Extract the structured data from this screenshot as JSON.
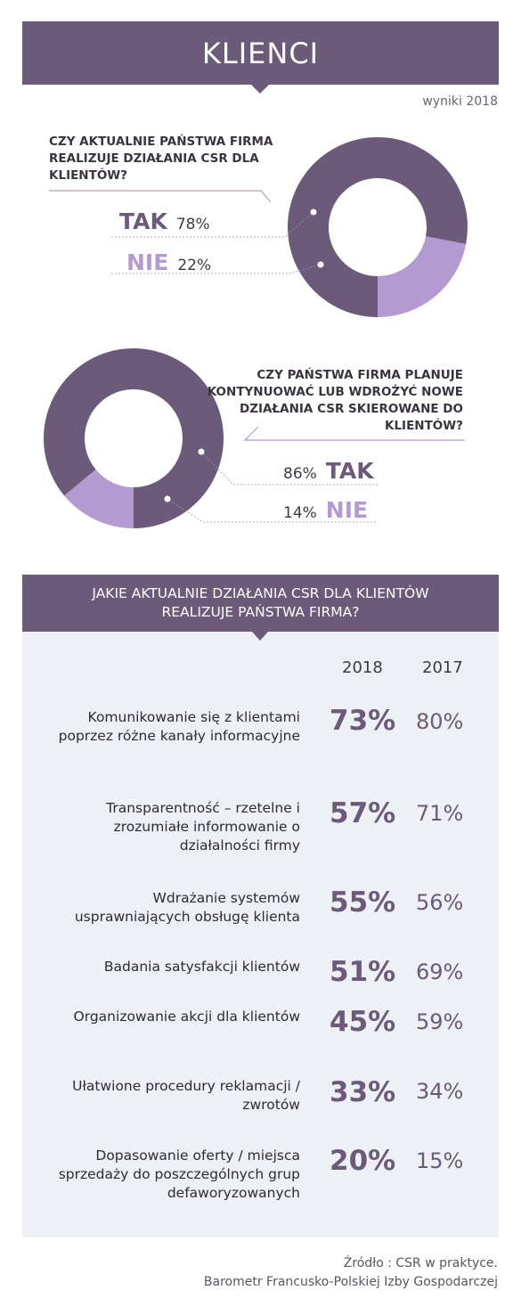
{
  "title": "KLIENCI",
  "year_note": "wyniki 2018",
  "colors": {
    "dark": "#6c5a7a",
    "light": "#b39ad0",
    "panel": "#edf0f4"
  },
  "chart_data": [
    {
      "type": "pie",
      "title": "CZY AKTUALNIE PAŃSTWA FIRMA REALIZUJE DZIAŁANIA CSR DLA KLIENTÓW?",
      "categories": [
        "TAK",
        "NIE"
      ],
      "values": [
        78,
        22
      ],
      "labels": [
        "78%",
        "22%"
      ]
    },
    {
      "type": "pie",
      "title": "CZY PAŃSTWA FIRMA PLANUJE KONTYNUOWAĆ LUB WDROŻYĆ NOWE DZIAŁANIA CSR SKIEROWANE DO KLIENTÓW?",
      "categories": [
        "TAK",
        "NIE"
      ],
      "values": [
        86,
        14
      ],
      "labels": [
        "86%",
        "14%"
      ]
    },
    {
      "type": "table",
      "title": "JAKIE AKTUALNIE DZIAŁANIA CSR DLA KLIENTÓW REALIZUJE PAŃSTWA FIRMA?",
      "columns": [
        "2018",
        "2017"
      ],
      "rows": [
        {
          "label": "Komunikowanie się z klientami poprzez różne kanały informacyjne",
          "v2018": "73%",
          "v2017": "80%"
        },
        {
          "label": "Transparentność – rzetelne i zrozumiałe informowanie o działalności firmy",
          "v2018": "57%",
          "v2017": "71%"
        },
        {
          "label": "Wdrażanie systemów usprawniających obsługę klienta",
          "v2018": "55%",
          "v2017": "56%"
        },
        {
          "label": "Badania satysfakcji klientów",
          "v2018": "51%",
          "v2017": "69%"
        },
        {
          "label": "Organizowanie akcji dla klientów",
          "v2018": "45%",
          "v2017": "59%"
        },
        {
          "label": "Ułatwione procedury reklamacji / zwrotów",
          "v2018": "33%",
          "v2017": "34%"
        },
        {
          "label": "Dopasowanie oferty / miejsca sprzedaży do poszczególnych grup defaworyzowanych",
          "v2018": "20%",
          "v2017": "15%"
        }
      ]
    }
  ],
  "source": {
    "line1": "Źródło : CSR w praktyce.",
    "line2": "Barometr Francusko-Polskiej Izby Gospodarczej"
  }
}
